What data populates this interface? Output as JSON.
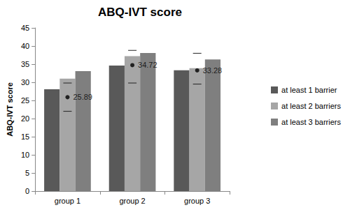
{
  "chart_data": {
    "type": "bar",
    "title": "ABQ-IVT score",
    "y_label": "ABQ-IVT score",
    "categories": [
      "group 1",
      "group 2",
      "group 3"
    ],
    "series": [
      {
        "name": "at least 1 barrier",
        "color": "#595959",
        "values": [
          28.1,
          34.6,
          33.3
        ]
      },
      {
        "name": "at least 2 barriers",
        "color": "#a6a6a6",
        "values": [
          31.0,
          37.2,
          33.9
        ]
      },
      {
        "name": "at least 3 barriers",
        "color": "#7f7f7f",
        "values": [
          33.1,
          38.1,
          36.3
        ]
      },
      {
        "type": "scatter",
        "color": "#000000",
        "marker": "circle",
        "data_labels": true,
        "values": [
          25.89,
          34.72,
          33.28
        ],
        "error_low": [
          22.0,
          29.8,
          29.5
        ],
        "error_high": [
          29.8,
          38.8,
          38.0
        ]
      }
    ],
    "ylim": [
      0,
      45
    ],
    "yticks": [
      0,
      5,
      10,
      15,
      20,
      25,
      30,
      35,
      40,
      45
    ],
    "grid": false,
    "legend": "right"
  }
}
